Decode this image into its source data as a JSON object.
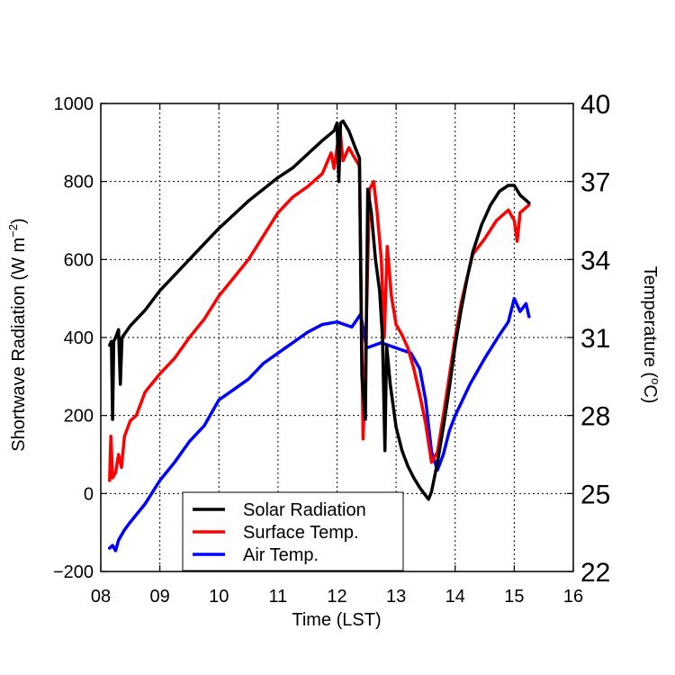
{
  "chart_data": {
    "type": "line",
    "xlabel": "Time (LST)",
    "ylabel_left": "Shortwave Radiation (W m",
    "ylabel_left_sup": "−2",
    "ylabel_left_close": ")",
    "ylabel_right": "Temperature (",
    "ylabel_right_sup": "o",
    "ylabel_right_close": "C)",
    "xlim": [
      8,
      16
    ],
    "ylim_left": [
      -200,
      1000
    ],
    "ylim_right": [
      22,
      40
    ],
    "x_ticks": [
      8,
      9,
      10,
      11,
      12,
      13,
      14,
      15,
      16
    ],
    "x_tick_labels": [
      "08",
      "09",
      "10",
      "11",
      "12",
      "13",
      "14",
      "15",
      "16"
    ],
    "y_left_ticks": [
      1000,
      800,
      600,
      400,
      200,
      0,
      -200
    ],
    "y_left_tick_labels": [
      "1000",
      "800",
      "600",
      "400",
      "200",
      "0",
      "−200"
    ],
    "y_right_ticks": [
      40,
      37,
      34,
      31,
      28,
      25,
      22
    ],
    "y_right_tick_labels": [
      "40",
      "37",
      "34",
      "31",
      "28",
      "25",
      "22"
    ],
    "grid": true,
    "legend_position": "bottom-center",
    "series": [
      {
        "name": "Solar Radiation",
        "axis": "left",
        "color": "#000000",
        "points": [
          [
            8.15,
            380
          ],
          [
            8.18,
            390
          ],
          [
            8.2,
            190
          ],
          [
            8.22,
            390
          ],
          [
            8.25,
            400
          ],
          [
            8.3,
            420
          ],
          [
            8.33,
            280
          ],
          [
            8.36,
            400
          ],
          [
            8.5,
            430
          ],
          [
            8.75,
            470
          ],
          [
            9.0,
            520
          ],
          [
            9.25,
            560
          ],
          [
            9.5,
            600
          ],
          [
            9.75,
            640
          ],
          [
            10.0,
            680
          ],
          [
            10.25,
            715
          ],
          [
            10.5,
            750
          ],
          [
            10.75,
            780
          ],
          [
            11.0,
            810
          ],
          [
            11.25,
            835
          ],
          [
            11.5,
            870
          ],
          [
            11.75,
            905
          ],
          [
            11.95,
            930
          ],
          [
            12.0,
            950
          ],
          [
            12.03,
            800
          ],
          [
            12.06,
            950
          ],
          [
            12.1,
            955
          ],
          [
            12.2,
            930
          ],
          [
            12.3,
            890
          ],
          [
            12.38,
            860
          ],
          [
            12.42,
            300
          ],
          [
            12.48,
            190
          ],
          [
            12.52,
            780
          ],
          [
            12.58,
            720
          ],
          [
            12.65,
            600
          ],
          [
            12.72,
            520
          ],
          [
            12.77,
            400
          ],
          [
            12.81,
            110
          ],
          [
            12.84,
            380
          ],
          [
            12.9,
            280
          ],
          [
            13.0,
            170
          ],
          [
            13.1,
            110
          ],
          [
            13.2,
            70
          ],
          [
            13.3,
            40
          ],
          [
            13.4,
            15
          ],
          [
            13.5,
            -5
          ],
          [
            13.55,
            -15
          ],
          [
            13.6,
            5
          ],
          [
            13.7,
            80
          ],
          [
            13.8,
            170
          ],
          [
            13.9,
            270
          ],
          [
            14.0,
            380
          ],
          [
            14.1,
            470
          ],
          [
            14.2,
            550
          ],
          [
            14.3,
            620
          ],
          [
            14.45,
            690
          ],
          [
            14.6,
            740
          ],
          [
            14.75,
            775
          ],
          [
            14.9,
            790
          ],
          [
            15.0,
            790
          ],
          [
            15.1,
            765
          ],
          [
            15.25,
            745
          ]
        ]
      },
      {
        "name": "Surface Temp.",
        "axis": "right",
        "color": "#ff0000",
        "points": [
          [
            8.15,
            25.5
          ],
          [
            8.17,
            27.2
          ],
          [
            8.2,
            25.6
          ],
          [
            8.25,
            25.8
          ],
          [
            8.3,
            26.5
          ],
          [
            8.35,
            26.0
          ],
          [
            8.4,
            27.2
          ],
          [
            8.5,
            27.8
          ],
          [
            8.6,
            28.0
          ],
          [
            8.75,
            28.9
          ],
          [
            9.0,
            29.6
          ],
          [
            9.25,
            30.2
          ],
          [
            9.5,
            31.0
          ],
          [
            9.75,
            31.7
          ],
          [
            10.0,
            32.6
          ],
          [
            10.25,
            33.3
          ],
          [
            10.5,
            34.0
          ],
          [
            10.75,
            34.9
          ],
          [
            11.0,
            35.8
          ],
          [
            11.25,
            36.4
          ],
          [
            11.5,
            36.8
          ],
          [
            11.75,
            37.3
          ],
          [
            11.9,
            38.1
          ],
          [
            11.95,
            37.5
          ],
          [
            12.0,
            38.3
          ],
          [
            12.05,
            39.0
          ],
          [
            12.1,
            37.8
          ],
          [
            12.2,
            38.3
          ],
          [
            12.3,
            37.9
          ],
          [
            12.38,
            37.6
          ],
          [
            12.44,
            27.1
          ],
          [
            12.48,
            30.0
          ],
          [
            12.55,
            36.7
          ],
          [
            12.62,
            37.0
          ],
          [
            12.68,
            35.8
          ],
          [
            12.75,
            34.0
          ],
          [
            12.8,
            31.0
          ],
          [
            12.85,
            34.5
          ],
          [
            12.92,
            32.6
          ],
          [
            13.0,
            31.5
          ],
          [
            13.1,
            31.1
          ],
          [
            13.2,
            30.6
          ],
          [
            13.3,
            29.8
          ],
          [
            13.4,
            28.8
          ],
          [
            13.5,
            27.7
          ],
          [
            13.6,
            26.2
          ],
          [
            13.7,
            26.6
          ],
          [
            13.8,
            28.0
          ],
          [
            13.9,
            29.5
          ],
          [
            14.0,
            31.0
          ],
          [
            14.1,
            32.3
          ],
          [
            14.2,
            33.3
          ],
          [
            14.3,
            34.2
          ],
          [
            14.5,
            34.8
          ],
          [
            14.7,
            35.5
          ],
          [
            14.9,
            35.9
          ],
          [
            15.0,
            35.5
          ],
          [
            15.05,
            34.7
          ],
          [
            15.1,
            35.8
          ],
          [
            15.2,
            36.0
          ],
          [
            15.25,
            36.1
          ]
        ]
      },
      {
        "name": "Air Temp.",
        "axis": "right",
        "color": "#0000ff",
        "points": [
          [
            8.15,
            22.9
          ],
          [
            8.2,
            23.0
          ],
          [
            8.25,
            22.8
          ],
          [
            8.3,
            23.2
          ],
          [
            8.4,
            23.6
          ],
          [
            8.5,
            23.9
          ],
          [
            8.75,
            24.6
          ],
          [
            9.0,
            25.5
          ],
          [
            9.25,
            26.2
          ],
          [
            9.5,
            27.0
          ],
          [
            9.75,
            27.6
          ],
          [
            10.0,
            28.6
          ],
          [
            10.25,
            29.0
          ],
          [
            10.5,
            29.4
          ],
          [
            10.75,
            30.0
          ],
          [
            11.0,
            30.4
          ],
          [
            11.25,
            30.8
          ],
          [
            11.5,
            31.2
          ],
          [
            11.75,
            31.5
          ],
          [
            12.0,
            31.6
          ],
          [
            12.25,
            31.4
          ],
          [
            12.4,
            31.9
          ],
          [
            12.5,
            30.6
          ],
          [
            12.75,
            30.8
          ],
          [
            13.0,
            30.6
          ],
          [
            13.25,
            30.4
          ],
          [
            13.4,
            29.8
          ],
          [
            13.5,
            28.6
          ],
          [
            13.6,
            26.6
          ],
          [
            13.7,
            25.9
          ],
          [
            13.8,
            26.5
          ],
          [
            13.9,
            27.4
          ],
          [
            14.0,
            28.0
          ],
          [
            14.25,
            29.2
          ],
          [
            14.5,
            30.2
          ],
          [
            14.75,
            31.1
          ],
          [
            14.9,
            31.6
          ],
          [
            15.0,
            32.5
          ],
          [
            15.1,
            32.0
          ],
          [
            15.2,
            32.3
          ],
          [
            15.25,
            31.8
          ]
        ]
      }
    ]
  }
}
